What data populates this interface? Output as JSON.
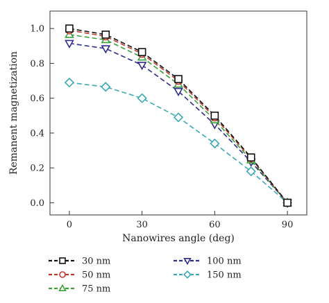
{
  "chart_data": {
    "type": "line",
    "xlabel": "Nanowires angle (deg)",
    "ylabel": "Remanent magnetization",
    "xlim": [
      -8,
      98
    ],
    "ylim": [
      -0.07,
      1.1
    ],
    "xticks": [
      0,
      30,
      60,
      90
    ],
    "yticks": [
      0.0,
      0.2,
      0.4,
      0.6,
      0.8,
      1.0
    ],
    "x": [
      0,
      15,
      30,
      45,
      60,
      75,
      90
    ],
    "grid": false,
    "legend_position": "bottom",
    "series": [
      {
        "name": "30 nm",
        "color": "#111111",
        "marker": "square",
        "values": [
          1.0,
          0.965,
          0.865,
          0.71,
          0.5,
          0.26,
          0.0
        ]
      },
      {
        "name": "50 nm",
        "color": "#c0392b",
        "marker": "circle",
        "values": [
          0.99,
          0.955,
          0.855,
          0.7,
          0.49,
          0.255,
          0.0
        ]
      },
      {
        "name": "75 nm",
        "color": "#3aa13a",
        "marker": "triangle-up",
        "values": [
          0.965,
          0.935,
          0.835,
          0.68,
          0.475,
          0.245,
          0.0
        ]
      },
      {
        "name": "100 nm",
        "color": "#2c2c8c",
        "marker": "triangle-down",
        "values": [
          0.915,
          0.885,
          0.79,
          0.64,
          0.45,
          0.235,
          0.0
        ]
      },
      {
        "name": "150 nm",
        "color": "#3aa9b3",
        "marker": "diamond",
        "values": [
          0.69,
          0.665,
          0.6,
          0.49,
          0.34,
          0.18,
          0.0
        ]
      }
    ]
  }
}
